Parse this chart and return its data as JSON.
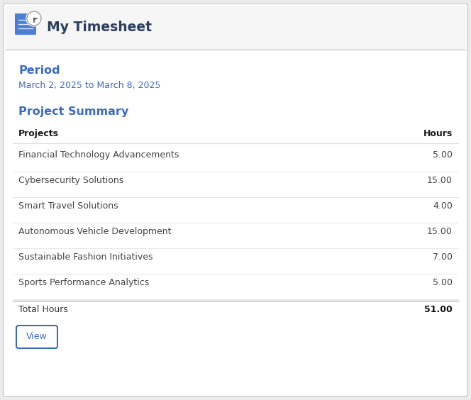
{
  "title": "My Timesheet",
  "period_label": "Period",
  "period_value": "March 2, 2025 to March 8, 2025",
  "section_title": "Project Summary",
  "col_projects": "Projects",
  "col_hours": "Hours",
  "projects": [
    "Financial Technology Advancements",
    "Cybersecurity Solutions",
    "Smart Travel Solutions",
    "Autonomous Vehicle Development",
    "Sustainable Fashion Initiatives",
    "Sports Performance Analytics"
  ],
  "hours": [
    "5.00",
    "15.00",
    "4.00",
    "15.00",
    "7.00",
    "5.00"
  ],
  "total_label": "Total Hours",
  "total_hours": "51.00",
  "button_label": "View",
  "bg_color": "#ebebeb",
  "card_color": "#ffffff",
  "header_bg": "#f5f5f5",
  "header_text_color": "#2c3e60",
  "period_label_color": "#3a6bc4",
  "period_value_color": "#3a6bc4",
  "section_title_color": "#3a6bc4",
  "col_header_color": "#1a1a1a",
  "row_text_color": "#444444",
  "total_label_color": "#333333",
  "total_hours_color": "#111111",
  "button_text_color": "#3a6bc4",
  "button_border_color": "#3a6bc4",
  "divider_color": "#dddddd",
  "header_divider_color": "#cccccc",
  "icon_blue": "#4a7fd4",
  "icon_border": "#aaaaaa"
}
